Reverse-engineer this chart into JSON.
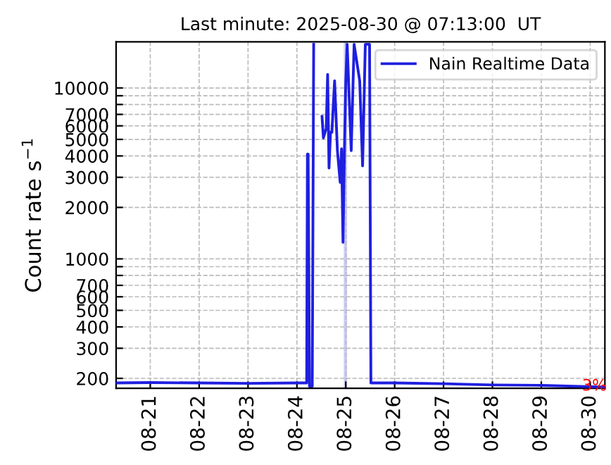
{
  "chart_data": {
    "type": "line",
    "title": "Last minute: 2025-08-30 @ 07:13:00  UT",
    "ylabel": "Count rate s$^{−1}$",
    "log": "y",
    "grid": true,
    "legend": "top right",
    "marker": "none",
    "line_style": "solid",
    "xlim": [
      "2025-08-20T07:13",
      "2025-08-30T07:13"
    ],
    "ylim": [
      175,
      18600
    ],
    "xticks": [
      {
        "value": "2025-08-21",
        "label": "08-21"
      },
      {
        "value": "2025-08-22",
        "label": "08-22"
      },
      {
        "value": "2025-08-23",
        "label": "08-23"
      },
      {
        "value": "2025-08-24",
        "label": "08-24"
      },
      {
        "value": "2025-08-25",
        "label": "08-25"
      },
      {
        "value": "2025-08-26",
        "label": "08-26"
      },
      {
        "value": "2025-08-27",
        "label": "08-27"
      },
      {
        "value": "2025-08-28",
        "label": "08-28"
      },
      {
        "value": "2025-08-29",
        "label": "08-29"
      },
      {
        "value": "2025-08-30",
        "label": "08-30"
      }
    ],
    "yticks": [
      200,
      300,
      400,
      500,
      600,
      700,
      {
        "value": 800,
        "label": null
      },
      {
        "value": 900,
        "label": null
      },
      1000,
      2000,
      3000,
      4000,
      5000,
      6000,
      7000,
      {
        "value": 8000,
        "label": null
      },
      {
        "value": 9000,
        "label": null
      },
      10000
    ],
    "bands": [
      {
        "axis": "x",
        "from": "2025-08-24T23:00",
        "to": "2025-08-25T00:40",
        "color": "#cfcff5"
      }
    ],
    "annotations": [
      {
        "text": "3%",
        "x": "2025-08-29T20:00",
        "y": 180
      }
    ],
    "series": [
      {
        "name": "Nain Realtime Data",
        "color": "#1f1fe0",
        "x": [
          "2025-08-20T07:13",
          "2025-08-21T00:00",
          "2025-08-22T00:00",
          "2025-08-23T00:00",
          "2025-08-24T00:00",
          "2025-08-24T04:48",
          "2025-08-24T05:10",
          "2025-08-24T05:30",
          "2025-08-24T06:10",
          "2025-08-24T07:32",
          "2025-08-24T08:14",
          "2025-08-24T10:00",
          "2025-08-24T12:20",
          "2025-08-24T13:00",
          "2025-08-24T14:24",
          "2025-08-24T15:05",
          "2025-08-24T15:46",
          "2025-08-24T16:30",
          "2025-08-24T17:10",
          "2025-08-24T18:30",
          "2025-08-24T19:53",
          "2025-08-24T21:15",
          "2025-08-24T21:55",
          "2025-08-24T22:38",
          "2025-08-24T23:20",
          "2025-08-25T00:00",
          "2025-08-25T00:40",
          "2025-08-25T02:40",
          "2025-08-25T04:05",
          "2025-08-25T06:50",
          "2025-08-25T08:15",
          "2025-08-25T09:35",
          "2025-08-25T11:40",
          "2025-08-25T12:20",
          "2025-08-26T00:00",
          "2025-08-27T00:00",
          "2025-08-28T00:00",
          "2025-08-29T00:00",
          "2025-08-30T07:13"
        ],
        "values": [
          188,
          189,
          188,
          187,
          188,
          188,
          4100,
          4100,
          180,
          180,
          18000,
          null,
          6800,
          5100,
          5800,
          12000,
          3400,
          5500,
          5500,
          11000,
          4300,
          2800,
          4400,
          1250,
          4400,
          11000,
          18000,
          4300,
          18000,
          11000,
          3500,
          18000,
          18000,
          188,
          188,
          186,
          183,
          182,
          178
        ]
      }
    ]
  }
}
